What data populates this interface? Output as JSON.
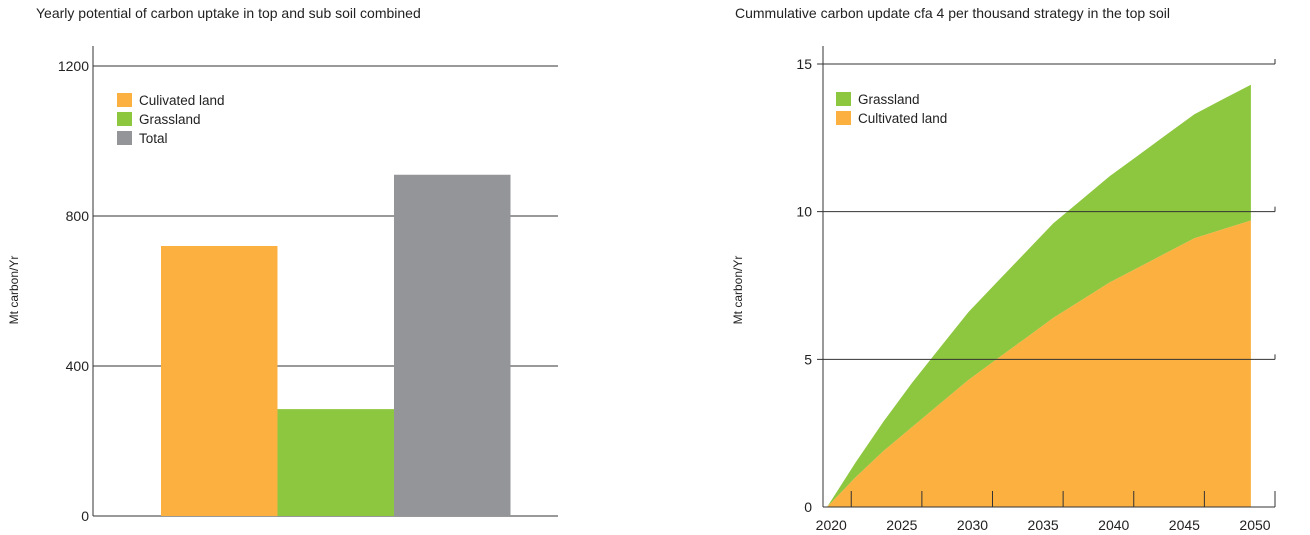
{
  "chart_data": [
    {
      "type": "bar",
      "title": "Yearly potential of carbon uptake in top and sub  soil combined",
      "xlabel": "",
      "ylabel": "Mt carbon/Yr",
      "ylim": [
        0,
        1200
      ],
      "yticks": [
        "0",
        "400",
        "800",
        "1200"
      ],
      "grid": true,
      "legend_position": "top-left",
      "categories": [
        "Culivated land",
        "Grassland",
        "Total"
      ],
      "values": [
        720,
        285,
        910
      ],
      "colors": [
        "#fbb040",
        "#8dc63f",
        "#939598"
      ]
    },
    {
      "type": "area",
      "title": "Cummulative carbon update cfa 4 per thousand strategy in the top soil",
      "xlabel": "",
      "ylabel": "Mt carbon/Yr",
      "ylim": [
        0,
        15
      ],
      "xlim": [
        2018,
        2050
      ],
      "xticks": [
        "2020",
        "2025",
        "2030",
        "2035",
        "2040",
        "2045",
        "2050"
      ],
      "yticks": [
        "0",
        "5",
        "10",
        "15"
      ],
      "grid": true,
      "stacked": true,
      "legend_position": "top-left",
      "x": [
        2019,
        2021,
        2023,
        2025,
        2027,
        2029,
        2031,
        2033,
        2035,
        2037,
        2039,
        2041,
        2043,
        2045,
        2047,
        2049
      ],
      "series": [
        {
          "name": "Cultivated land",
          "color": "#fbb040",
          "values": [
            0,
            1.0,
            1.9,
            2.7,
            3.5,
            4.3,
            5.0,
            5.7,
            6.4,
            7.0,
            7.6,
            8.1,
            8.6,
            9.1,
            9.4,
            9.7
          ]
        },
        {
          "name": "Grassland",
          "color": "#8dc63f",
          "values": [
            0,
            0.5,
            1.0,
            1.5,
            1.9,
            2.3,
            2.6,
            2.9,
            3.2,
            3.4,
            3.6,
            3.8,
            4.0,
            4.2,
            4.4,
            4.6
          ]
        }
      ],
      "legend_order": [
        "Grassland",
        "Cultivated land"
      ]
    }
  ]
}
